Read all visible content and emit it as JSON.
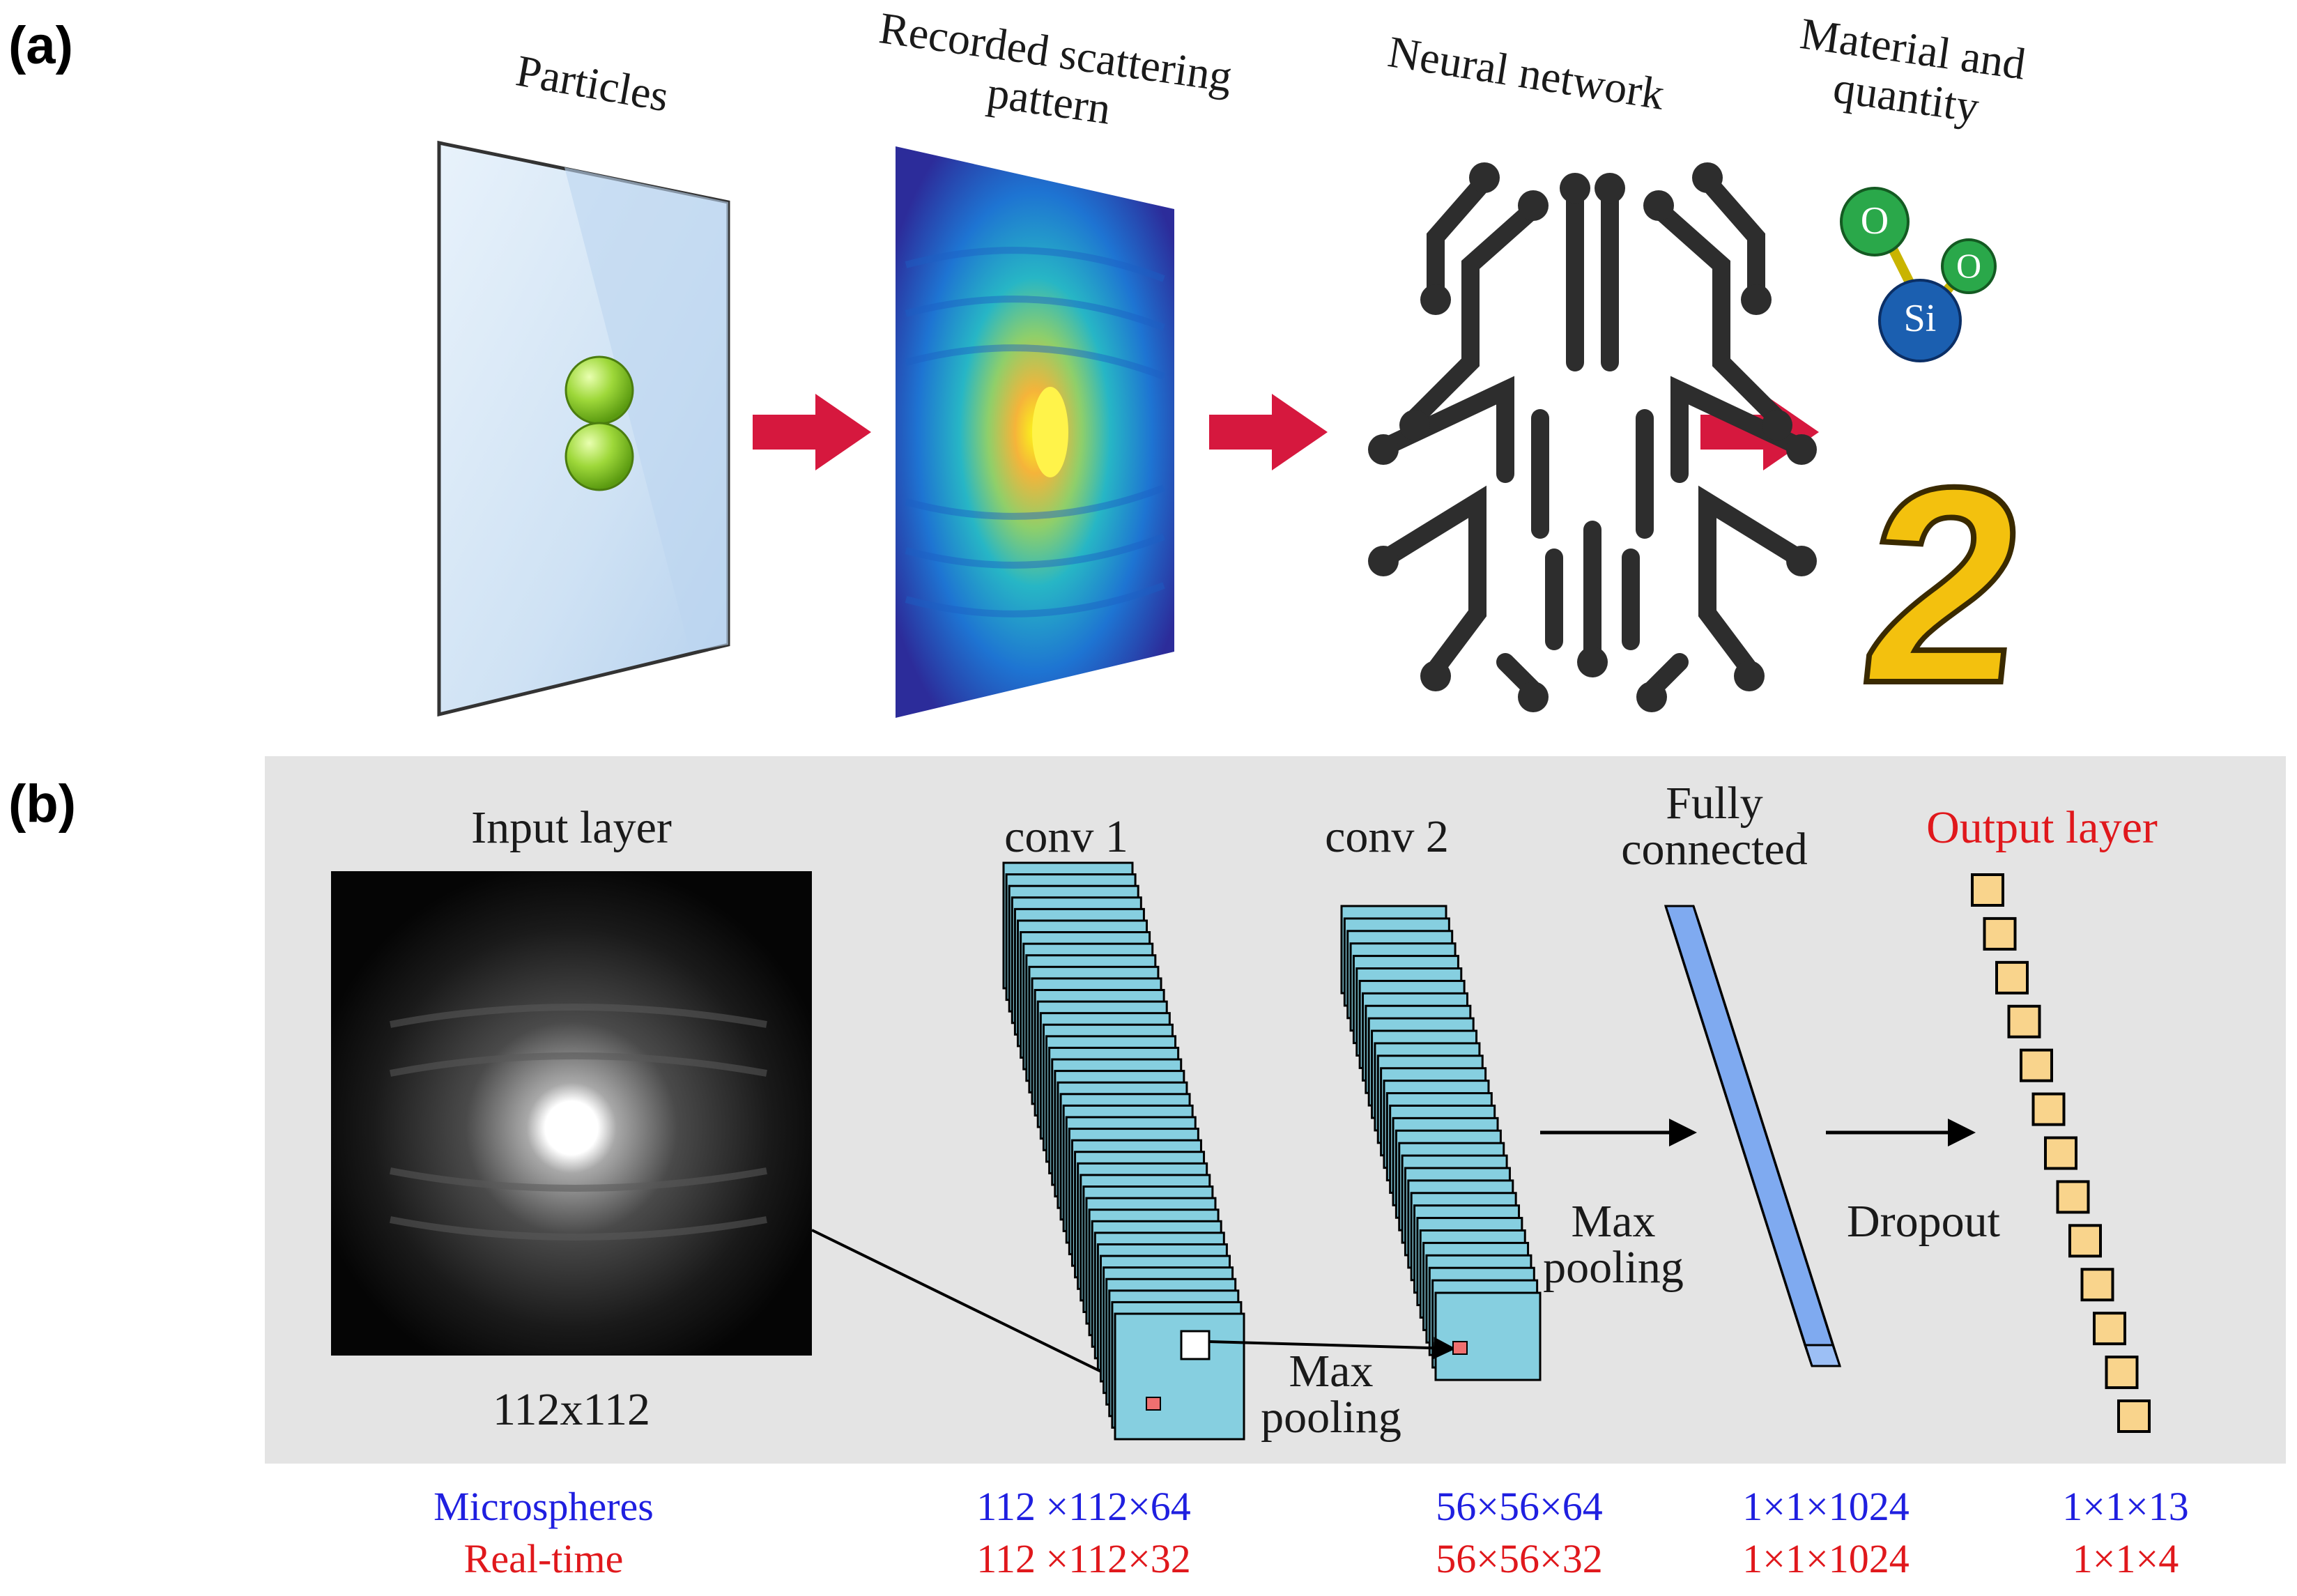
{
  "panels": {
    "a": "(a)",
    "b": "(b)"
  },
  "panel_a": {
    "stages": [
      "Particles",
      "Recorded scattering pattern",
      "Neural network",
      "Material and quantity"
    ],
    "molecule": {
      "atom_top": "O",
      "atom_right": "O",
      "atom_center": "Si"
    },
    "quantity": "2"
  },
  "panel_b": {
    "input_label": "Input layer",
    "input_size": "112x112",
    "conv1_label": "conv 1",
    "conv2_label": "conv 2",
    "fc_label": "Fully connected",
    "output_label": "Output layer",
    "maxpool_1": "Max pooling",
    "maxpool_2": "Max pooling",
    "dropout": "Dropout"
  },
  "rows": [
    {
      "name": "Microspheres",
      "conv1": "112 ×112×64",
      "conv2": "56×56×64",
      "fc": "1×1×1024",
      "out": "1×1×13",
      "color": "#1f1fe0"
    },
    {
      "name": "Real-time",
      "conv1": "112 ×112×32",
      "conv2": "56×56×32",
      "fc": "1×1×1024",
      "out": "1×1×4",
      "color": "#e0181c"
    }
  ],
  "colors": {
    "arrow": "#d6183e",
    "feature_map": "#86cfe0",
    "fc_layer": "#7faaf0",
    "output_node": "#f9d48c",
    "output_label": "#e0181c",
    "si_atom": "#1b5fb0",
    "o_atom": "#2aa84a",
    "digit": "#f3c10e"
  }
}
